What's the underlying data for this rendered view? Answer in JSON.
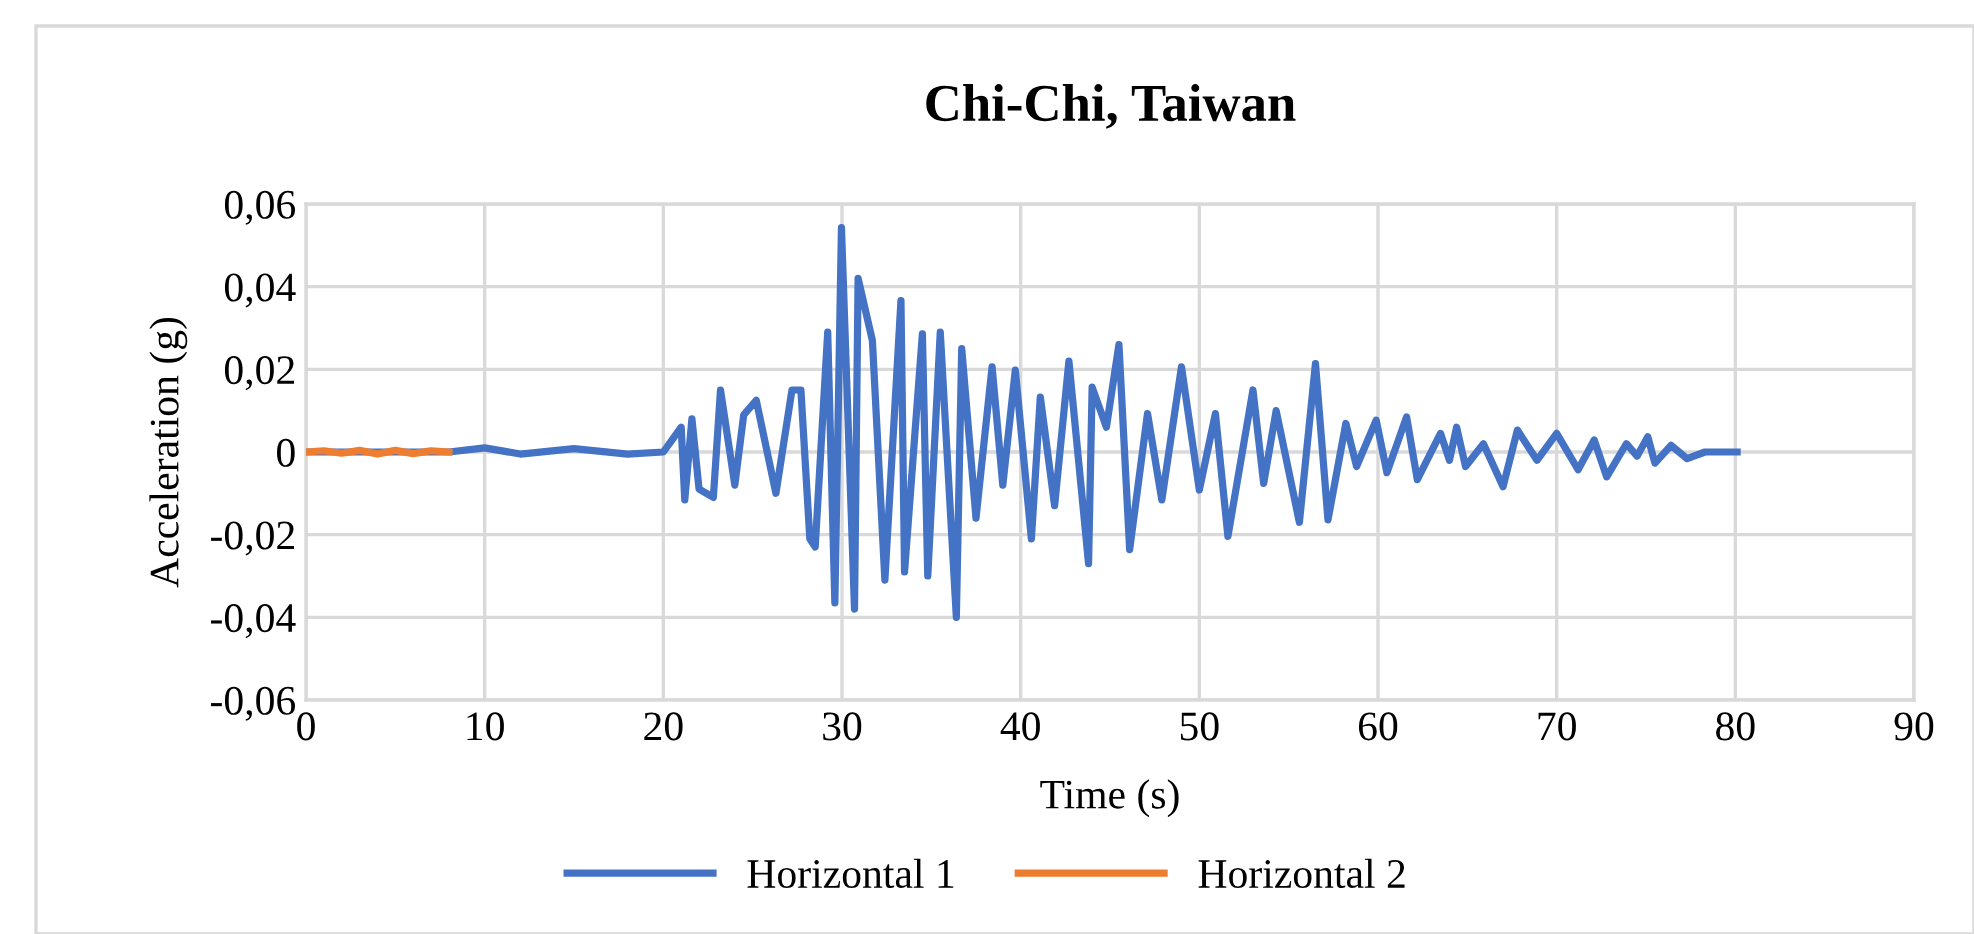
{
  "chart_data": {
    "type": "line",
    "title": "Chi-Chi, Taiwan",
    "xlabel": "Time (s)",
    "ylabel": "Acceleration (g)",
    "xlim": [
      0,
      90
    ],
    "xticks": [
      0,
      10,
      20,
      30,
      40,
      50,
      60,
      70,
      80,
      90
    ],
    "ylim": [
      -0.06,
      0.06
    ],
    "yticks": [
      {
        "value": -0.06,
        "label": "-0,06"
      },
      {
        "value": -0.04,
        "label": "-0,04"
      },
      {
        "value": -0.02,
        "label": "-0,02"
      },
      0,
      {
        "value": 0.02,
        "label": "0,02"
      },
      {
        "value": 0.04,
        "label": "0,04"
      },
      {
        "value": 0.06,
        "label": "0,06"
      }
    ],
    "grid": true,
    "legend": "bottom",
    "marker": "none",
    "line_style": "solid",
    "series": [
      {
        "name": "Horizontal 1",
        "color": "#4472c4",
        "x": [
          0,
          8,
          10,
          12,
          15,
          18,
          20,
          20.5,
          21.0,
          21.2,
          21.6,
          22.0,
          22.8,
          23.2,
          24.0,
          24.5,
          25.2,
          26.3,
          27.2,
          27.7,
          28.2,
          28.5,
          29.2,
          29.6,
          29.97,
          30.7,
          30.9,
          31.7,
          32.4,
          33.3,
          33.5,
          34.5,
          34.8,
          35.5,
          36.4,
          36.7,
          37.5,
          38.4,
          39.0,
          39.7,
          40.6,
          41.1,
          41.9,
          42.7,
          43.8,
          44.0,
          44.8,
          45.5,
          46.1,
          47.1,
          47.9,
          49.0,
          50.0,
          50.9,
          51.6,
          53.0,
          53.6,
          54.3,
          55.6,
          56.5,
          57.2,
          58.2,
          58.8,
          59.9,
          60.5,
          61.6,
          62.2,
          63.5,
          64.0,
          64.4,
          64.9,
          65.9,
          67.0,
          67.8,
          68.9,
          70.0,
          71.2,
          72.1,
          72.8,
          73.9,
          74.5,
          75.1,
          75.5,
          76.4,
          77.3,
          78.3,
          80.1
        ],
        "values": [
          0,
          0,
          0.001,
          -0.0005,
          0.0008,
          -0.0005,
          0,
          0.003,
          0.006,
          -0.0116,
          0.008,
          -0.009,
          -0.011,
          0.015,
          -0.008,
          0.009,
          0.0125,
          -0.01,
          0.015,
          0.015,
          -0.021,
          -0.023,
          0.029,
          -0.0365,
          0.0543,
          -0.038,
          0.042,
          0.027,
          -0.031,
          0.0366,
          -0.029,
          0.0286,
          -0.03,
          0.029,
          -0.04,
          0.025,
          -0.016,
          0.0206,
          -0.008,
          0.0198,
          -0.021,
          0.0133,
          -0.013,
          0.022,
          -0.027,
          0.0157,
          0.006,
          0.026,
          -0.0236,
          0.0093,
          -0.0116,
          0.0206,
          -0.0092,
          0.0093,
          -0.0204,
          0.015,
          -0.0076,
          0.01,
          -0.017,
          0.0214,
          -0.0164,
          0.0069,
          -0.0035,
          0.0077,
          -0.005,
          0.0085,
          -0.0067,
          0.0045,
          -0.002,
          0.006,
          -0.0035,
          0.002,
          -0.0084,
          0.0053,
          -0.002,
          0.0045,
          -0.0043,
          0.0029,
          -0.006,
          0.002,
          -0.001,
          0.0037,
          -0.0027,
          0.0016,
          -0.0016,
          0,
          0
        ]
      },
      {
        "name": "Horizontal 2",
        "color": "#ed7d31",
        "x": [
          0,
          1,
          2,
          3,
          4,
          5,
          6,
          7,
          8
        ],
        "values": [
          0,
          0.0003,
          -0.0003,
          0.0004,
          -0.0005,
          0.0004,
          -0.0004,
          0.0003,
          0
        ]
      }
    ]
  }
}
